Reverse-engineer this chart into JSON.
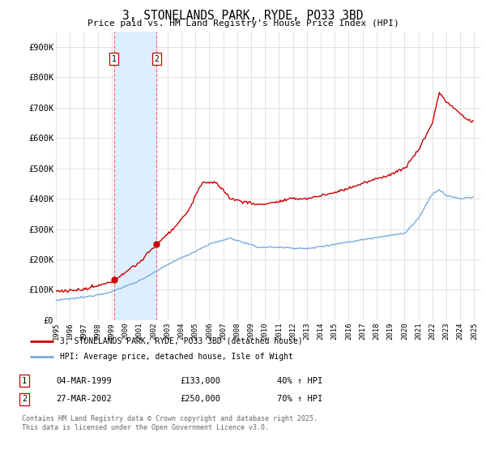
{
  "title": "3, STONELANDS PARK, RYDE, PO33 3BD",
  "subtitle": "Price paid vs. HM Land Registry's House Price Index (HPI)",
  "legend_line1": "3, STONELANDS PARK, RYDE, PO33 3BD (detached house)",
  "legend_line2": "HPI: Average price, detached house, Isle of Wight",
  "transaction1_date": "04-MAR-1999",
  "transaction1_price": "£133,000",
  "transaction1_hpi": "40% ↑ HPI",
  "transaction2_date": "27-MAR-2002",
  "transaction2_price": "£250,000",
  "transaction2_hpi": "70% ↑ HPI",
  "footer": "Contains HM Land Registry data © Crown copyright and database right 2025.\nThis data is licensed under the Open Government Licence v3.0.",
  "price_color": "#cc0000",
  "hpi_color": "#7aabe0",
  "highlight_color": "#ddeeff",
  "sale1_year": 1999.17,
  "sale1_price": 133000,
  "sale2_year": 2002.22,
  "sale2_price": 250000,
  "ylim": [
    0,
    950000
  ],
  "yticks": [
    0,
    100000,
    200000,
    300000,
    400000,
    500000,
    600000,
    700000,
    800000,
    900000
  ],
  "ytick_labels": [
    "£0",
    "£100K",
    "£200K",
    "£300K",
    "£400K",
    "£500K",
    "£600K",
    "£700K",
    "£800K",
    "£900K"
  ],
  "xlim_start": 1995,
  "xlim_end": 2025.5
}
